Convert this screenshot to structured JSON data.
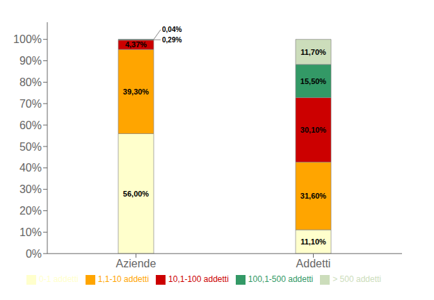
{
  "chart_data": {
    "type": "bar",
    "stacked": true,
    "categories": [
      "Aziende",
      "Addetti"
    ],
    "series": [
      {
        "name": "0-1 addetti",
        "color": "#FFFFCC",
        "values": [
          56.0,
          11.1
        ],
        "value_labels": [
          "56,00%",
          "11,10%"
        ]
      },
      {
        "name": "1,1-10 addetti",
        "color": "#FFA500",
        "values": [
          39.3,
          31.6
        ],
        "value_labels": [
          "39,30%",
          "31,60%"
        ]
      },
      {
        "name": "10,1-100 addetti",
        "color": "#CC0000",
        "values": [
          4.37,
          30.1
        ],
        "value_labels": [
          "4,37%",
          "30,10%"
        ]
      },
      {
        "name": "100,1-500 addetti",
        "color": "#339966",
        "values": [
          0.29,
          15.5
        ],
        "value_labels": [
          "0,29%",
          "15,50%"
        ]
      },
      {
        "name": "> 500 addetti",
        "color": "#CCDDBB",
        "values": [
          0.04,
          11.7
        ],
        "value_labels": [
          "0,04%",
          "11,70%"
        ]
      }
    ],
    "ylim": [
      0,
      108
    ],
    "yticks": [
      {
        "value": 0,
        "label": "0%"
      },
      {
        "value": 10,
        "label": "10%"
      },
      {
        "value": 20,
        "label": "20%"
      },
      {
        "value": 30,
        "label": "30%"
      },
      {
        "value": 40,
        "label": "40%"
      },
      {
        "value": 50,
        "label": "50%"
      },
      {
        "value": 60,
        "label": "60%"
      },
      {
        "value": 70,
        "label": "70%"
      },
      {
        "value": 80,
        "label": "80%"
      },
      {
        "value": 90,
        "label": "90%"
      },
      {
        "value": 100,
        "label": "100%"
      }
    ],
    "data_labels": true,
    "legend": "bottom",
    "grid": false
  }
}
